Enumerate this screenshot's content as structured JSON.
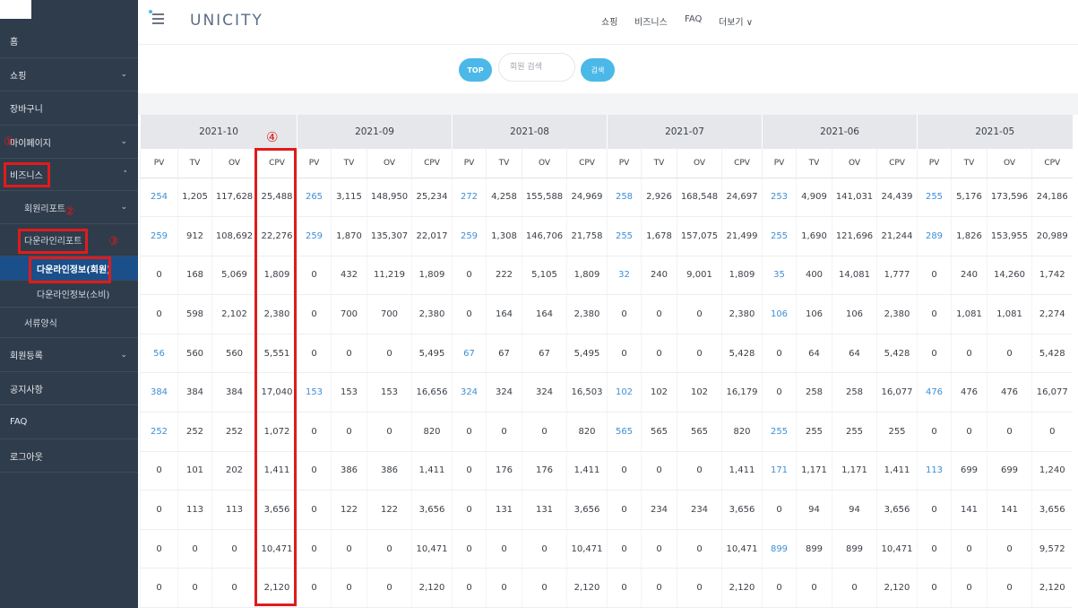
{
  "sidebar": {
    "items": [
      {
        "label": "홈",
        "chevron": false
      },
      {
        "label": "쇼핑",
        "chevron": true
      },
      {
        "label": "장바구니",
        "chevron": false
      },
      {
        "label": "마이페이지",
        "chevron": true
      },
      {
        "label": "비즈니스",
        "chevron": true,
        "chevron_dir": "up"
      },
      {
        "label": "회원리포트",
        "chevron": true
      },
      {
        "label": "다운라인리포트",
        "chevron": false
      },
      {
        "label": "다운라인정보(회원)",
        "chevron": false,
        "active": true
      },
      {
        "label": "다운라인정보(소비)",
        "chevron": false
      },
      {
        "label": "서류양식",
        "chevron": false
      },
      {
        "label": "회원등록",
        "chevron": true
      },
      {
        "label": "공지사항",
        "chevron": false
      },
      {
        "label": "FAQ",
        "chevron": false
      },
      {
        "label": "로그아웃",
        "chevron": false
      }
    ],
    "chevron_down_glyph": "⌄",
    "chevron_up_glyph": "˄"
  },
  "annotations": {
    "step1": "①",
    "step2": "②",
    "step3": "③",
    "step4": "④",
    "color": "#e01b1b"
  },
  "header": {
    "brand": "UNICITY",
    "nav": [
      "쇼핑",
      "비즈니스",
      "FAQ",
      "더보기 ∨"
    ]
  },
  "search": {
    "top_label": "TOP",
    "placeholder": "회원 검색",
    "button_label": "검색"
  },
  "colors": {
    "sidebar_bg": "#2f3c4b",
    "accent": "#4bb8e8",
    "link": "#3d8fd6",
    "active_item": "#1b4f8a"
  },
  "table": {
    "months": [
      "2021-10",
      "2021-09",
      "2021-08",
      "2021-07",
      "2021-06",
      "2021-05"
    ],
    "sub_headers": [
      "PV",
      "TV",
      "OV",
      "CPV"
    ],
    "rows": [
      [
        "254",
        "1,205",
        "117,628",
        "25,488",
        "265",
        "3,115",
        "148,950",
        "25,234",
        "272",
        "4,258",
        "155,588",
        "24,969",
        "258",
        "2,926",
        "168,548",
        "24,697",
        "253",
        "4,909",
        "141,031",
        "24,439",
        "255",
        "5,176",
        "173,596",
        "24,186"
      ],
      [
        "259",
        "912",
        "108,692",
        "22,276",
        "259",
        "1,870",
        "135,307",
        "22,017",
        "259",
        "1,308",
        "146,706",
        "21,758",
        "255",
        "1,678",
        "157,075",
        "21,499",
        "255",
        "1,690",
        "121,696",
        "21,244",
        "289",
        "1,826",
        "153,955",
        "20,989"
      ],
      [
        "0",
        "168",
        "5,069",
        "1,809",
        "0",
        "432",
        "11,219",
        "1,809",
        "0",
        "222",
        "5,105",
        "1,809",
        "32",
        "240",
        "9,001",
        "1,809",
        "35",
        "400",
        "14,081",
        "1,777",
        "0",
        "240",
        "14,260",
        "1,742"
      ],
      [
        "0",
        "598",
        "2,102",
        "2,380",
        "0",
        "700",
        "700",
        "2,380",
        "0",
        "164",
        "164",
        "2,380",
        "0",
        "0",
        "0",
        "2,380",
        "106",
        "106",
        "106",
        "2,380",
        "0",
        "1,081",
        "1,081",
        "2,274"
      ],
      [
        "56",
        "560",
        "560",
        "5,551",
        "0",
        "0",
        "0",
        "5,495",
        "67",
        "67",
        "67",
        "5,495",
        "0",
        "0",
        "0",
        "5,428",
        "0",
        "64",
        "64",
        "5,428",
        "0",
        "0",
        "0",
        "5,428"
      ],
      [
        "384",
        "384",
        "384",
        "17,040",
        "153",
        "153",
        "153",
        "16,656",
        "324",
        "324",
        "324",
        "16,503",
        "102",
        "102",
        "102",
        "16,179",
        "0",
        "258",
        "258",
        "16,077",
        "476",
        "476",
        "476",
        "16,077"
      ],
      [
        "252",
        "252",
        "252",
        "1,072",
        "0",
        "0",
        "0",
        "820",
        "0",
        "0",
        "0",
        "820",
        "565",
        "565",
        "565",
        "820",
        "255",
        "255",
        "255",
        "255",
        "0",
        "0",
        "0",
        "0"
      ],
      [
        "0",
        "101",
        "202",
        "1,411",
        "0",
        "386",
        "386",
        "1,411",
        "0",
        "176",
        "176",
        "1,411",
        "0",
        "0",
        "0",
        "1,411",
        "171",
        "1,171",
        "1,171",
        "1,411",
        "113",
        "699",
        "699",
        "1,240"
      ],
      [
        "0",
        "113",
        "113",
        "3,656",
        "0",
        "122",
        "122",
        "3,656",
        "0",
        "131",
        "131",
        "3,656",
        "0",
        "234",
        "234",
        "3,656",
        "0",
        "94",
        "94",
        "3,656",
        "0",
        "141",
        "141",
        "3,656"
      ],
      [
        "0",
        "0",
        "0",
        "10,471",
        "0",
        "0",
        "0",
        "10,471",
        "0",
        "0",
        "0",
        "10,471",
        "0",
        "0",
        "0",
        "10,471",
        "899",
        "899",
        "899",
        "10,471",
        "0",
        "0",
        "0",
        "9,572"
      ],
      [
        "0",
        "0",
        "0",
        "2,120",
        "0",
        "0",
        "0",
        "2,120",
        "0",
        "0",
        "0",
        "2,120",
        "0",
        "0",
        "0",
        "2,120",
        "0",
        "0",
        "0",
        "2,120",
        "0",
        "0",
        "0",
        "2,120"
      ]
    ]
  }
}
